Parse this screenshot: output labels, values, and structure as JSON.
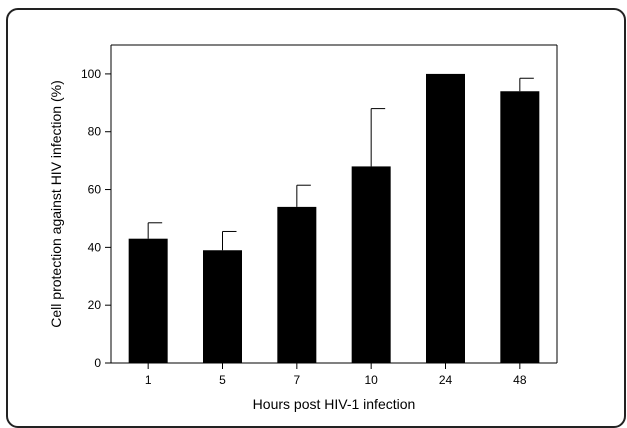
{
  "chart_data": {
    "type": "bar",
    "title": "",
    "xlabel": "Hours post HIV-1 infection",
    "ylabel": "Cell protection against HIV infection (%)",
    "categories": [
      "1",
      "5",
      "7",
      "10",
      "24",
      "48"
    ],
    "values": [
      43,
      39,
      54,
      68,
      100,
      94
    ],
    "error": [
      5.5,
      6.5,
      7.5,
      20,
      0,
      4.5
    ],
    "ylim": [
      0,
      110
    ],
    "yticks": [
      "0",
      "20",
      "40",
      "60",
      "80",
      "100"
    ],
    "grid": false,
    "colors": {
      "bar": "#000000",
      "axis": "#000000"
    }
  }
}
